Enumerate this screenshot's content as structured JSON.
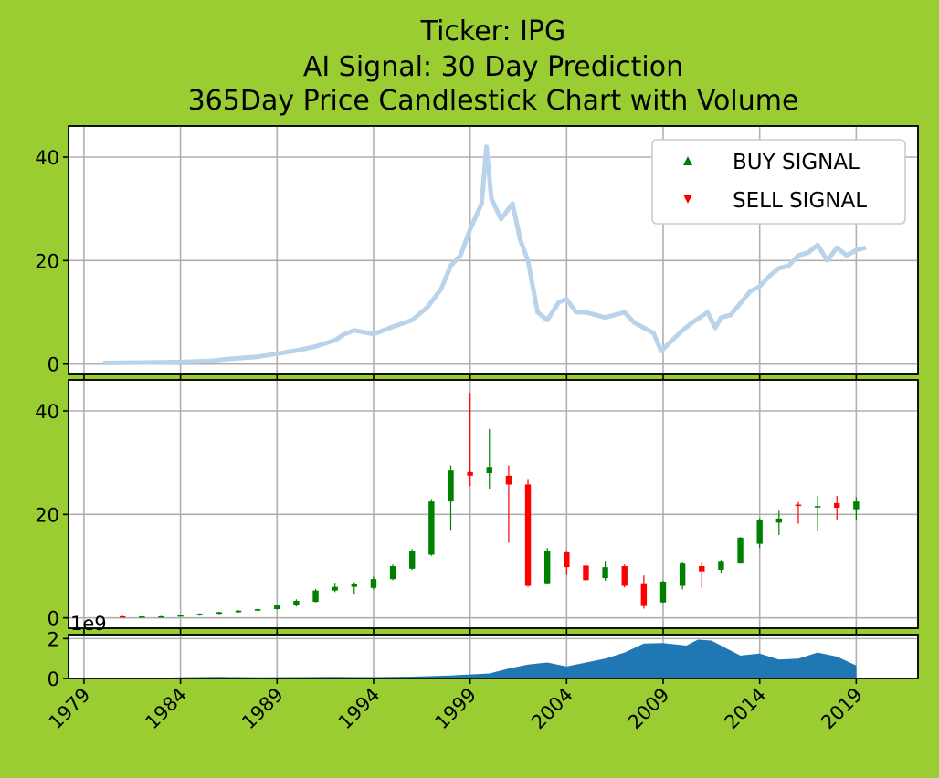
{
  "title_lines": [
    "Ticker: IPG",
    "AI Signal: 30 Day Prediction",
    "365Day Price Candlestick Chart with Volume"
  ],
  "colors": {
    "background": "#9acd32",
    "price_line": "#b9d4ea",
    "up": "#008000",
    "down": "#ff0000",
    "volume": "#1f77b4"
  },
  "legend": {
    "buy_label": "BUY SIGNAL",
    "sell_label": "SELL SIGNAL",
    "placement": "top-right"
  },
  "volume_offset_label": "1e9",
  "chart_data": [
    {
      "type": "line",
      "panel": "price",
      "ylim": [
        -2,
        46
      ],
      "yticks": [
        0,
        20,
        40
      ],
      "x": [
        1980.0,
        1982.0,
        1984.0,
        1985.5,
        1986.5,
        1988.0,
        1989.0,
        1990.0,
        1991.0,
        1992.0,
        1992.5,
        1993.0,
        1994.0,
        1995.0,
        1996.0,
        1996.8,
        1997.5,
        1998.0,
        1998.5,
        1999.0,
        1999.6,
        1999.85,
        2000.1,
        2000.6,
        2001.2,
        2001.6,
        2002.0,
        2002.5,
        2003.0,
        2003.6,
        2004.0,
        2004.5,
        2005.0,
        2006.0,
        2007.0,
        2007.5,
        2008.0,
        2008.5,
        2008.9,
        2009.3,
        2010.0,
        2010.5,
        2011.3,
        2011.7,
        2012.0,
        2012.5,
        2013.5,
        2014.0,
        2014.5,
        2015.0,
        2015.5,
        2016.0,
        2016.5,
        2017.0,
        2017.5,
        2018.0,
        2018.5,
        2019.0,
        2019.5
      ],
      "y": [
        0.2,
        0.3,
        0.4,
        0.6,
        1.0,
        1.4,
        2.0,
        2.6,
        3.4,
        4.6,
        5.8,
        6.5,
        5.8,
        7.2,
        8.5,
        11.0,
        14.5,
        19.0,
        21.0,
        26.0,
        31.0,
        42.0,
        32.0,
        28.0,
        31.0,
        24.0,
        20.0,
        10.0,
        8.5,
        12.0,
        12.5,
        10.0,
        10.0,
        9.0,
        10.0,
        8.0,
        7.0,
        6.0,
        2.5,
        4.0,
        6.5,
        8.0,
        10.0,
        7.0,
        9.0,
        9.5,
        14.0,
        15.0,
        17.0,
        18.5,
        19.0,
        21.0,
        21.5,
        23.0,
        20.0,
        22.5,
        21.0,
        22.0,
        22.5
      ]
    },
    {
      "type": "candlestick",
      "panel": "candles",
      "ylim": [
        -2,
        46
      ],
      "yticks": [
        0,
        20,
        40
      ],
      "x": [
        1981,
        1982,
        1983,
        1984,
        1985,
        1986,
        1987,
        1988,
        1989,
        1990,
        1991,
        1992,
        1993,
        1994,
        1995,
        1996,
        1997,
        1998,
        1999,
        2000,
        2001,
        2002,
        2003,
        2004,
        2005,
        2006,
        2007,
        2008,
        2009,
        2010,
        2011,
        2012,
        2013,
        2014,
        2015,
        2016,
        2017,
        2018,
        2019
      ],
      "open": [
        0.3,
        0.2,
        0.3,
        0.4,
        0.5,
        0.8,
        1.1,
        1.4,
        1.7,
        2.4,
        3.1,
        5.3,
        6.0,
        5.8,
        7.5,
        9.5,
        12.2,
        22.5,
        28.2,
        28.0,
        27.5,
        25.8,
        6.7,
        12.8,
        10.1,
        7.7,
        10.0,
        6.7,
        3.0,
        6.2,
        10.0,
        9.3,
        10.5,
        14.3,
        18.4,
        21.9,
        21.5,
        22.2,
        21.0
      ],
      "close": [
        0.2,
        0.3,
        0.3,
        0.5,
        0.8,
        1.1,
        1.4,
        1.7,
        2.4,
        3.3,
        5.3,
        6.0,
        6.5,
        7.5,
        10.0,
        13.0,
        22.5,
        28.5,
        27.5,
        29.2,
        25.8,
        6.2,
        13.0,
        9.8,
        7.3,
        9.8,
        6.2,
        2.3,
        7.0,
        10.5,
        9.0,
        11.0,
        15.5,
        19.0,
        19.2,
        21.7,
        21.6,
        21.3,
        22.5
      ],
      "high": [
        0.4,
        0.3,
        0.4,
        0.6,
        0.9,
        1.2,
        1.5,
        1.8,
        2.6,
        3.6,
        5.6,
        6.8,
        6.9,
        8.0,
        10.3,
        13.3,
        22.8,
        29.5,
        43.5,
        36.5,
        29.5,
        26.7,
        13.5,
        13.0,
        10.5,
        11.0,
        10.3,
        8.2,
        7.2,
        10.7,
        10.8,
        11.2,
        15.6,
        19.3,
        20.7,
        22.4,
        23.6,
        23.6,
        23.3
      ],
      "low": [
        0.1,
        0.1,
        0.2,
        0.3,
        0.4,
        0.7,
        1.0,
        1.3,
        1.6,
        2.2,
        3.0,
        5.0,
        4.5,
        5.5,
        7.3,
        9.3,
        12.0,
        17.0,
        25.5,
        25.0,
        14.5,
        6.0,
        6.5,
        8.3,
        7.0,
        7.2,
        5.9,
        1.8,
        2.9,
        5.5,
        5.8,
        8.7,
        10.5,
        13.5,
        16.0,
        18.2,
        16.8,
        18.8,
        19.0
      ]
    },
    {
      "type": "area",
      "panel": "volume",
      "ylim": [
        0,
        2.2
      ],
      "yticks": [
        0,
        2
      ],
      "x": [
        1980,
        1982,
        1984,
        1986,
        1988,
        1990,
        1992,
        1994,
        1996,
        1998,
        2000,
        2001,
        2002,
        2003,
        2004,
        2005,
        2006,
        2007,
        2008,
        2009,
        2009.7,
        2010.2,
        2010.8,
        2011.5,
        2012.2,
        2013,
        2014,
        2015,
        2016,
        2017,
        2018,
        2019,
        2019.01
      ],
      "y": [
        0.02,
        0.02,
        0.06,
        0.08,
        0.06,
        0.07,
        0.08,
        0.07,
        0.09,
        0.15,
        0.25,
        0.5,
        0.7,
        0.8,
        0.6,
        0.8,
        1.0,
        1.3,
        1.75,
        1.78,
        1.7,
        1.65,
        1.95,
        1.9,
        1.55,
        1.15,
        1.25,
        0.95,
        1.0,
        1.3,
        1.1,
        0.65,
        0.0
      ]
    }
  ],
  "xaxis": {
    "xlim": [
      1978.2,
      2022.2
    ],
    "ticks": [
      1979,
      1984,
      1989,
      1994,
      1999,
      2004,
      2009,
      2014,
      2019
    ]
  }
}
